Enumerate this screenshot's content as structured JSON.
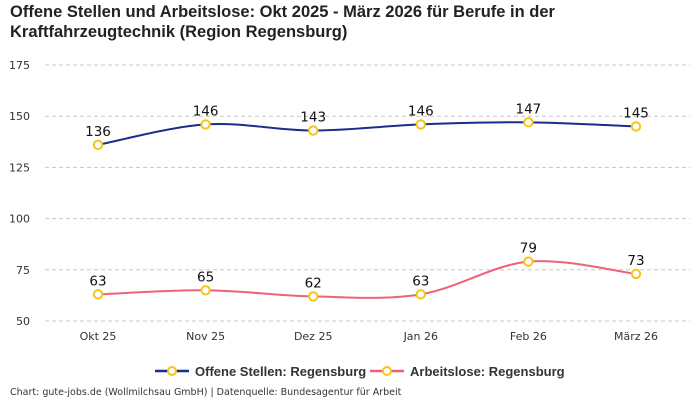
{
  "title": "Offene Stellen und Arbeitslose: Okt 2025 - März 2026 für Berufe in der Kraftfahrzeugtechnik (Region Regensburg)",
  "source": "Chart: gute-jobs.de (Wollmilchsau GmbH) | Datenquelle: Bundesagentur für Arbeit",
  "chart_data": {
    "type": "line",
    "title": "Offene Stellen und Arbeitslose: Okt 2025 - März 2026 für Berufe in der Kraftfahrzeugtechnik (Region Regensburg)",
    "categories": [
      "Okt 25",
      "Nov 25",
      "Dez 25",
      "Jan 26",
      "Feb 26",
      "März 26"
    ],
    "yticks": [
      50,
      75,
      100,
      125,
      150,
      175
    ],
    "ylim": [
      50,
      175
    ],
    "grid": true,
    "legend_placement": "bottom",
    "marker_color": "#f5c518",
    "series": [
      {
        "name": "Offene Stellen: Regensburg",
        "color": "#1a2f8a",
        "values": [
          136,
          146,
          143,
          146,
          147,
          145
        ]
      },
      {
        "name": "Arbeitslose: Regensburg",
        "color": "#f0607a",
        "values": [
          63,
          65,
          62,
          63,
          79,
          73
        ]
      }
    ]
  }
}
